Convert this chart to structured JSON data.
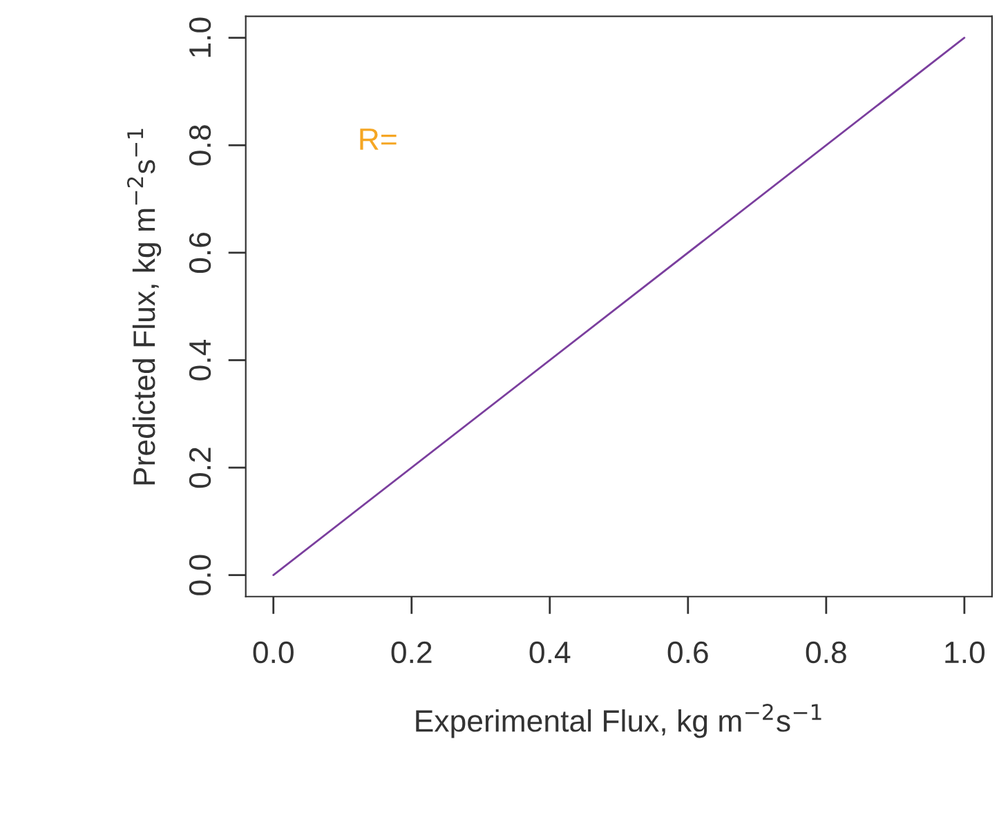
{
  "chart_data": {
    "type": "line",
    "xlabel": "Experimental Flux, kg m$^{−2}$s$^{−1}$",
    "ylabel": "Predicted Flux, kg m$^{−2}$s$^{−1}$",
    "x": [
      0,
      1
    ],
    "series": [
      {
        "color": "#7b3f9e",
        "values": [
          0,
          1
        ]
      }
    ],
    "xlim": [
      -0.04,
      1.04
    ],
    "ylim": [
      -0.04,
      1.04
    ],
    "xticks": [
      {
        "value": 0,
        "label": "0.0"
      },
      {
        "value": 0.2,
        "label": "0.2"
      },
      {
        "value": 0.4,
        "label": "0.4"
      },
      {
        "value": 0.6,
        "label": "0.6"
      },
      {
        "value": 0.8,
        "label": "0.8"
      },
      {
        "value": 1,
        "label": "1.0"
      }
    ],
    "yticks": [
      {
        "value": 0,
        "label": "0.0"
      },
      {
        "value": 0.2,
        "label": "0.2"
      },
      {
        "value": 0.4,
        "label": "0.4"
      },
      {
        "value": 0.6,
        "label": "0.6"
      },
      {
        "value": 0.8,
        "label": "0.8"
      },
      {
        "value": 1,
        "label": "1.0"
      }
    ],
    "annotations": [
      "R="
    ],
    "grid": false,
    "legend": false
  }
}
